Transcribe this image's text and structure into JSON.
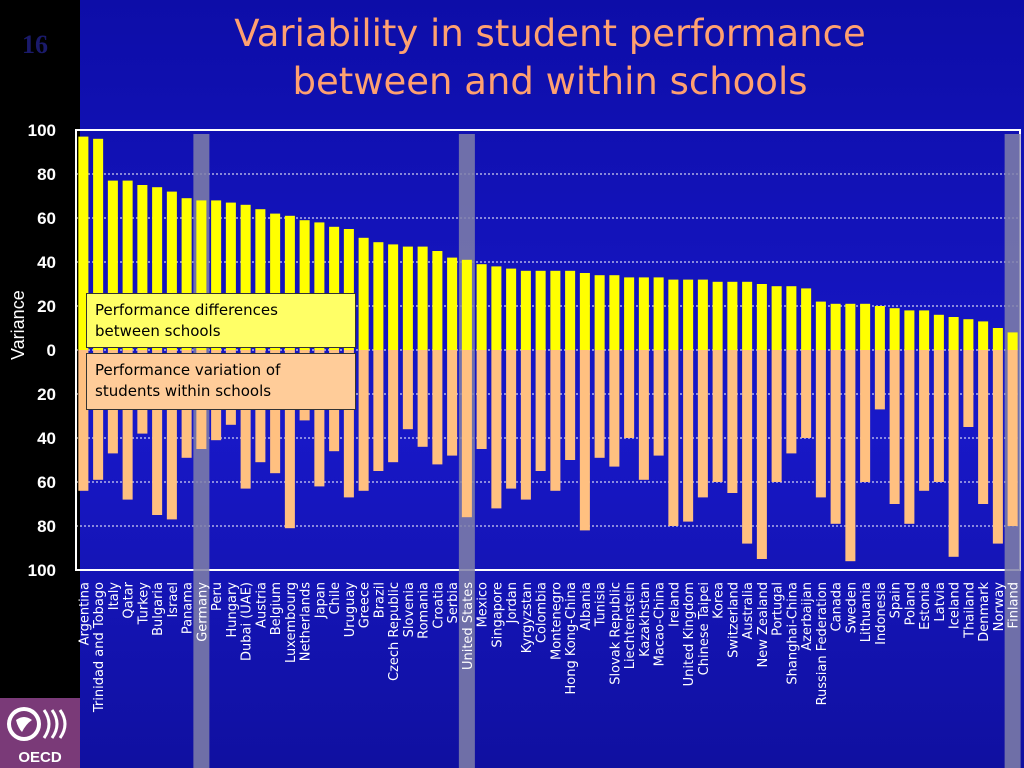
{
  "slide": {
    "number": "16",
    "logo_text": "OECD"
  },
  "chart_data": {
    "type": "bar",
    "title": "Variability in student performance between and within schools",
    "title_lines": [
      "Variability in student performance",
      "between and within schools"
    ],
    "ylabel": "Variance",
    "ylim": [
      -100,
      100
    ],
    "yticks": [
      100,
      80,
      60,
      40,
      20,
      0,
      -20,
      -40,
      -60,
      -80,
      -100
    ],
    "ytick_labels": [
      "100",
      "80",
      "60",
      "40",
      "20",
      "0",
      "20",
      "40",
      "60",
      "80",
      "100"
    ],
    "highlighted": [
      "Germany",
      "United States",
      "Finland"
    ],
    "colors": {
      "between": "#ffff00",
      "within": "#ffc080",
      "highlight": "#8080a8"
    },
    "legend": {
      "between": "Performance differences between schools",
      "within": "Performance variation of students within schools"
    },
    "categories": [
      "Argentina",
      "Trinidad and Tobago",
      "Italy",
      "Qatar",
      "Turkey",
      "Bulgaria",
      "Israel",
      "Panama",
      "Germany",
      "Peru",
      "Hungary",
      "Dubai (UAE)",
      "Austria",
      "Belgium",
      "Luxembourg",
      "Netherlands",
      "Japan",
      "Chile",
      "Uruguay",
      "Greece",
      "Brazil",
      "Czech Republic",
      "Slovenia",
      "Romania",
      "Croatia",
      "Serbia",
      "United States",
      "Mexico",
      "Singapore",
      "Jordan",
      "Kyrgyzstan",
      "Colombia",
      "Montenegro",
      "Hong Kong-China",
      "Albania",
      "Tunisia",
      "Slovak Republic",
      "Liechtenstein",
      "Kazakhstan",
      "Macao-China",
      "Ireland",
      "United Kingdom",
      "Chinese Taipei",
      "Korea",
      "Switzerland",
      "Australia",
      "New Zealand",
      "Portugal",
      "Shanghai-China",
      "Azerbaijan",
      "Russian Federation",
      "Canada",
      "Sweden",
      "Lithuania",
      "Indonesia",
      "Spain",
      "Poland",
      "Estonia",
      "Latvia",
      "Iceland",
      "Thailand",
      "Denmark",
      "Norway",
      "Finland"
    ],
    "series": [
      {
        "name": "Performance differences between schools",
        "values": [
          97,
          96,
          77,
          77,
          75,
          74,
          72,
          69,
          68,
          68,
          67,
          66,
          64,
          62,
          61,
          59,
          58,
          56,
          55,
          51,
          49,
          48,
          47,
          47,
          45,
          42,
          41,
          39,
          38,
          37,
          36,
          36,
          36,
          36,
          35,
          34,
          34,
          33,
          33,
          33,
          32,
          32,
          32,
          31,
          31,
          31,
          30,
          29,
          29,
          28,
          22,
          21,
          21,
          21,
          20,
          19,
          18,
          18,
          16,
          15,
          14,
          13,
          10,
          8
        ]
      },
      {
        "name": "Performance variation of students within schools",
        "values": [
          -64,
          -59,
          -47,
          -68,
          -38,
          -75,
          -77,
          -49,
          -45,
          -41,
          -34,
          -63,
          -51,
          -56,
          -81,
          -32,
          -62,
          -46,
          -67,
          -64,
          -55,
          -51,
          -36,
          -44,
          -52,
          -48,
          -76,
          -45,
          -72,
          -63,
          -68,
          -55,
          -64,
          -50,
          -82,
          -49,
          -53,
          -40,
          -59,
          -48,
          -80,
          -78,
          -67,
          -60,
          -65,
          -88,
          -95,
          -60,
          -47,
          -40,
          -67,
          -79,
          -96,
          -60,
          -27,
          -70,
          -79,
          -64,
          -60,
          -94,
          -35,
          -70,
          -88,
          -80
        ]
      }
    ]
  }
}
